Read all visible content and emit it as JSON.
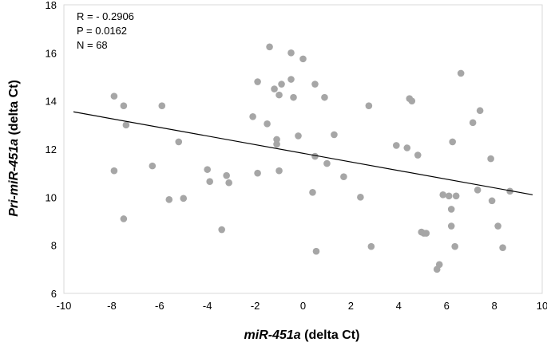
{
  "chart_data": {
    "type": "scatter",
    "title": "",
    "xlabel": {
      "italic": "miR-451a",
      "plain": " (delta Ct)"
    },
    "ylabel": {
      "italic": "Pri-miR-451a",
      "plain": " (delta Ct)"
    },
    "xlim": [
      -10,
      10
    ],
    "ylim": [
      6,
      18
    ],
    "xticks": [
      "-10",
      "-8",
      "-6",
      "-4",
      "-2",
      "0",
      "2",
      "4",
      "6",
      "8",
      "10"
    ],
    "yticks": [
      "6",
      "8",
      "10",
      "12",
      "14",
      "16",
      "18"
    ],
    "grid": false,
    "legend": "none",
    "annotations": [
      "R = - 0.2906",
      "P = 0.0162",
      "N = 68"
    ],
    "point_color": "#a6a6a6",
    "trendline": {
      "x": [
        -9.6,
        9.6
      ],
      "y": [
        13.55,
        10.1
      ],
      "color": "#000000"
    },
    "points": [
      [
        -7.9,
        14.2
      ],
      [
        -7.5,
        13.8
      ],
      [
        -7.4,
        13.0
      ],
      [
        -7.9,
        11.1
      ],
      [
        -7.5,
        9.1
      ],
      [
        -5.9,
        13.8
      ],
      [
        -6.3,
        11.3
      ],
      [
        -5.6,
        9.9
      ],
      [
        -5.2,
        12.3
      ],
      [
        -5.0,
        9.95
      ],
      [
        -4.0,
        11.15
      ],
      [
        -3.9,
        10.65
      ],
      [
        -3.2,
        10.9
      ],
      [
        -3.1,
        10.6
      ],
      [
        -3.4,
        8.65
      ],
      [
        -2.1,
        13.35
      ],
      [
        -1.9,
        14.8
      ],
      [
        -1.9,
        11.0
      ],
      [
        -1.5,
        13.05
      ],
      [
        -1.4,
        16.25
      ],
      [
        -1.2,
        14.5
      ],
      [
        -1.1,
        12.4
      ],
      [
        -1.0,
        14.25
      ],
      [
        -0.9,
        14.7
      ],
      [
        -1.1,
        12.2
      ],
      [
        -1.0,
        11.1
      ],
      [
        -0.5,
        16.0
      ],
      [
        -0.5,
        14.9
      ],
      [
        -0.4,
        14.15
      ],
      [
        -0.2,
        12.55
      ],
      [
        0.0,
        15.75
      ],
      [
        0.5,
        14.7
      ],
      [
        0.5,
        11.7
      ],
      [
        0.9,
        14.15
      ],
      [
        1.0,
        11.4
      ],
      [
        1.3,
        12.6
      ],
      [
        0.4,
        10.2
      ],
      [
        0.55,
        7.75
      ],
      [
        1.7,
        10.85
      ],
      [
        2.4,
        10.0
      ],
      [
        2.75,
        13.8
      ],
      [
        2.85,
        7.95
      ],
      [
        3.9,
        12.15
      ],
      [
        4.35,
        12.05
      ],
      [
        4.45,
        14.1
      ],
      [
        4.55,
        14.0
      ],
      [
        4.8,
        11.75
      ],
      [
        4.95,
        8.55
      ],
      [
        5.15,
        8.5
      ],
      [
        5.6,
        7.0
      ],
      [
        5.7,
        7.2
      ],
      [
        5.85,
        10.1
      ],
      [
        6.1,
        10.05
      ],
      [
        6.2,
        9.5
      ],
      [
        6.2,
        8.8
      ],
      [
        6.25,
        12.3
      ],
      [
        6.35,
        7.95
      ],
      [
        6.4,
        10.05
      ],
      [
        6.6,
        15.15
      ],
      [
        7.1,
        13.1
      ],
      [
        7.3,
        10.3
      ],
      [
        7.4,
        13.6
      ],
      [
        7.85,
        11.6
      ],
      [
        7.9,
        9.85
      ],
      [
        8.15,
        8.8
      ],
      [
        8.35,
        7.9
      ],
      [
        8.65,
        10.25
      ],
      [
        5.05,
        8.5
      ]
    ]
  }
}
